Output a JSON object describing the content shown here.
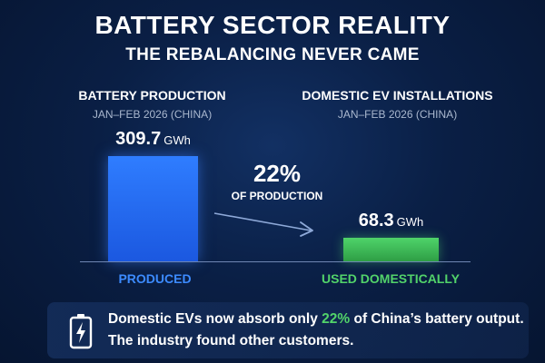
{
  "title": "BATTERY SECTOR REALITY",
  "subtitle": "THE REBALANCING NEVER CAME",
  "left_panel": {
    "heading": "BATTERY PRODUCTION",
    "period": "JAN–FEB 2026 (CHINA)"
  },
  "right_panel": {
    "heading": "DOMESTIC EV INSTALLATIONS",
    "period": "JAN–FEB 2026 (CHINA)"
  },
  "share": {
    "percent": "22%",
    "text": "OF PRODUCTION"
  },
  "footer": {
    "line1_pre": "Domestic EVs now absorb only ",
    "line1_highlight": "22%",
    "line1_post": " of China’s battery output.",
    "line2": "The industry found other customers.",
    "icon": "battery-charging-icon"
  },
  "colors": {
    "produced": "#2f7dff",
    "domestic": "#4fd36a",
    "produced_label": "#3c8bff",
    "domestic_label": "#52d36a"
  },
  "chart_data": {
    "type": "bar",
    "categories": [
      "PRODUCED",
      "USED DOMESTICALLY"
    ],
    "values": [
      309.7,
      68.3
    ],
    "value_labels": [
      "309.7",
      "68.3"
    ],
    "unit": "GWh",
    "share_percent": 22
  }
}
